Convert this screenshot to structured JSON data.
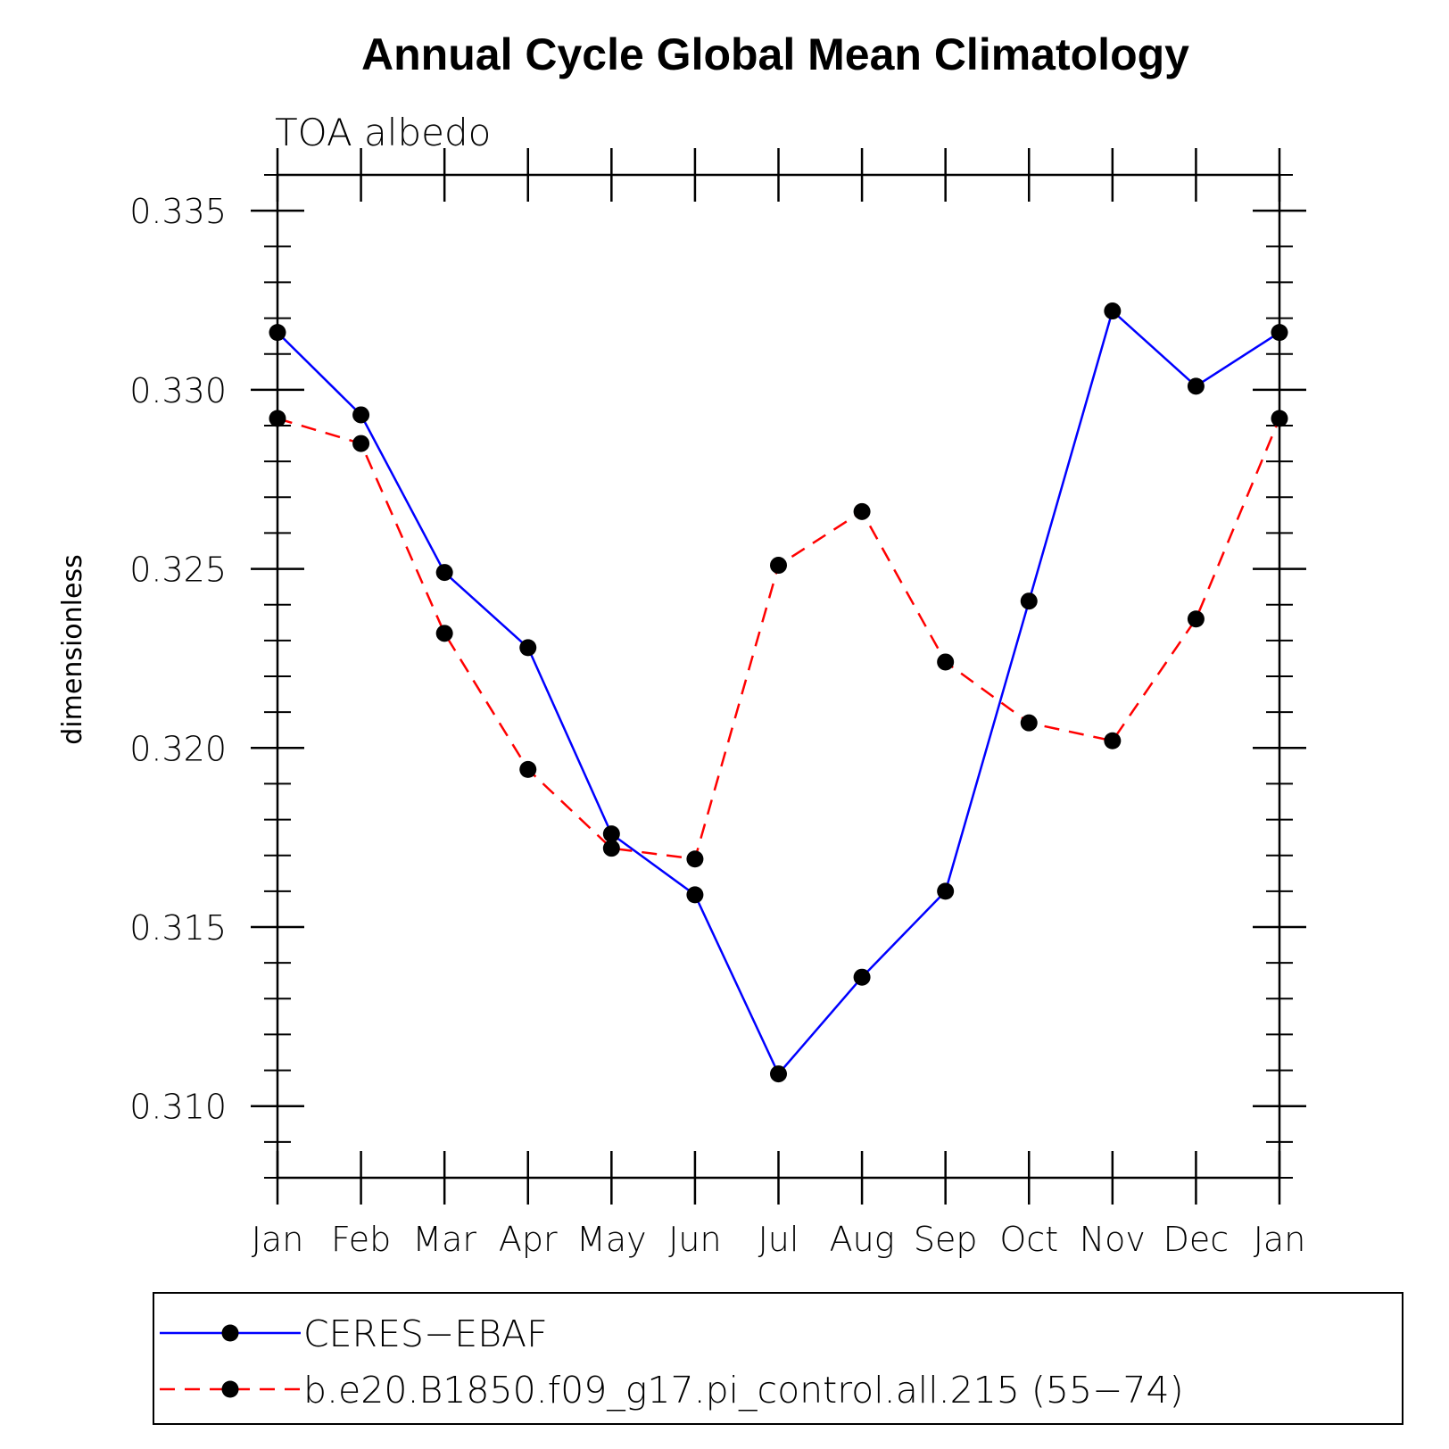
{
  "chart_data": {
    "type": "line",
    "title": "Annual Cycle Global Mean Climatology",
    "subtitle": "TOA albedo",
    "xlabel": "",
    "ylabel": "dimensionless",
    "categories": [
      "Jan",
      "Feb",
      "Mar",
      "Apr",
      "May",
      "Jun",
      "Jul",
      "Aug",
      "Sep",
      "Oct",
      "Nov",
      "Dec",
      "Jan"
    ],
    "ylim": [
      0.308,
      0.336
    ],
    "yticks": [
      0.31,
      0.315,
      0.32,
      0.325,
      0.33,
      0.335
    ],
    "ytick_labels": [
      "0.310",
      "0.315",
      "0.320",
      "0.325",
      "0.330",
      "0.335"
    ],
    "grid": false,
    "legend_position": "bottom",
    "series": [
      {
        "name": "CERES−EBAF",
        "color": "#0000ff",
        "dash": "solid",
        "marker": "filled-circle",
        "values": [
          0.3316,
          0.3293,
          0.3249,
          0.3228,
          0.3176,
          0.3159,
          0.3109,
          0.3136,
          0.316,
          0.3241,
          0.3322,
          0.3301,
          0.3316
        ]
      },
      {
        "name": "b.e20.B1850.f09_g17.pi_control.all.215 (55−74)",
        "color": "#ff0000",
        "dash": "dashed",
        "marker": "filled-circle",
        "values": [
          0.3292,
          0.3285,
          0.3232,
          0.3194,
          0.3172,
          0.3169,
          0.3251,
          0.3266,
          0.3224,
          0.3207,
          0.3202,
          0.3236,
          0.3292
        ]
      }
    ]
  }
}
